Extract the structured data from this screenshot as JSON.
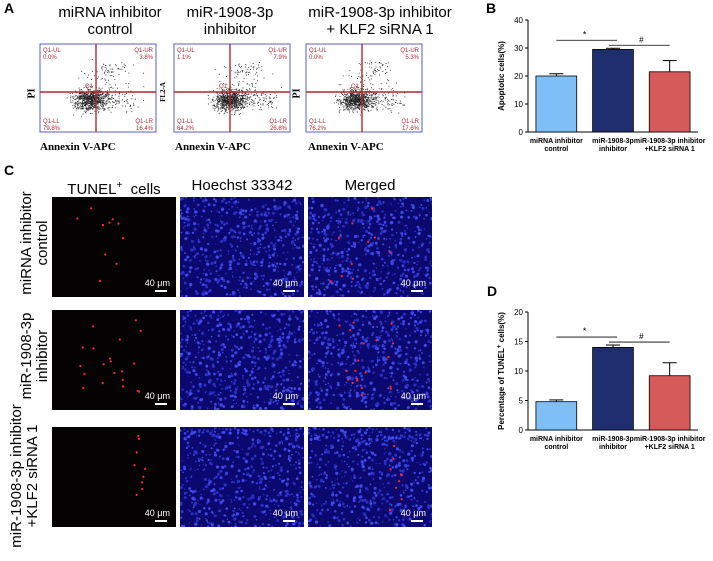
{
  "panel_letters": [
    "A",
    "B",
    "C",
    "D"
  ],
  "groups": [
    {
      "title_l1": "miRNA inhibitor",
      "title_l2": "control",
      "short_l1": "miRNA inhibitor",
      "short_l2": "control"
    },
    {
      "title_l1": "miR-1908-3p",
      "title_l2": "inhibitor",
      "short_l1": "miR-1908-3p",
      "short_l2": "inhibitor"
    },
    {
      "title_l1": "miR-1908-3p inhibitor",
      "title_l2": "+ KLF2 siRNA 1",
      "short_l1": "miR-1908-3p inhibitor",
      "short_l2": "+KLF2 siRNA 1"
    }
  ],
  "flow": {
    "xlabel": "Annexin V-APC",
    "ylabels": [
      "PI",
      "FL2-A",
      "PI"
    ],
    "quadrant_labels": {
      "ul": "Q1-UL",
      "ur": "Q1-UR",
      "ll": "Q1-LL",
      "lr": "Q1-LR",
      "center": "Q1"
    },
    "plots": [
      {
        "ul": "0.0%",
        "ur": "3.8%",
        "ll": "79.8%",
        "lr": "16.4%"
      },
      {
        "ul": "1.1%",
        "ur": "7.9%",
        "ll": "64.2%",
        "lr": "26.8%"
      },
      {
        "ul": "0.0%",
        "ur": "5.3%",
        "ll": "76.2%",
        "lr": "17.6%"
      }
    ]
  },
  "microscopy": {
    "columns": [
      "TUNEL",
      "cells",
      "Hoechst 33342",
      "Merged"
    ],
    "tunel_sup": "+",
    "scale_label": "40 μm",
    "row_labels": [
      {
        "l1": "miRNA inhibitor",
        "l2": "control"
      },
      {
        "l1": "miR-1908-3p",
        "l2": "inhibitor"
      },
      {
        "l1": "miR-1908-3p inhibitor",
        "l2": "+KLF2 siRNA 1"
      }
    ]
  },
  "chart_data": [
    {
      "type": "bar",
      "panel": "B",
      "ylabel": "Apoptotic cells(%)",
      "ylim": [
        0,
        40
      ],
      "yticks": [
        0,
        10,
        20,
        30,
        40
      ],
      "values": [
        20,
        29.5,
        21.5
      ],
      "errors": [
        0.8,
        0.4,
        4
      ],
      "colors": [
        "#7fbff7",
        "#1f2e6e",
        "#d55b5b"
      ],
      "significance": [
        "*",
        "#"
      ]
    },
    {
      "type": "bar",
      "panel": "D",
      "ylabel": "Percentage of TUNEL",
      "ylabel_sup": "+",
      "ylabel_end": " cells(%)",
      "ylim": [
        0,
        20
      ],
      "yticks": [
        0,
        5,
        10,
        15,
        20
      ],
      "values": [
        4.8,
        14,
        9.2
      ],
      "errors": [
        0.3,
        0.4,
        2.2
      ],
      "colors": [
        "#7fbff7",
        "#1f2e6e",
        "#d55b5b"
      ],
      "significance": [
        "*",
        "#"
      ]
    }
  ]
}
